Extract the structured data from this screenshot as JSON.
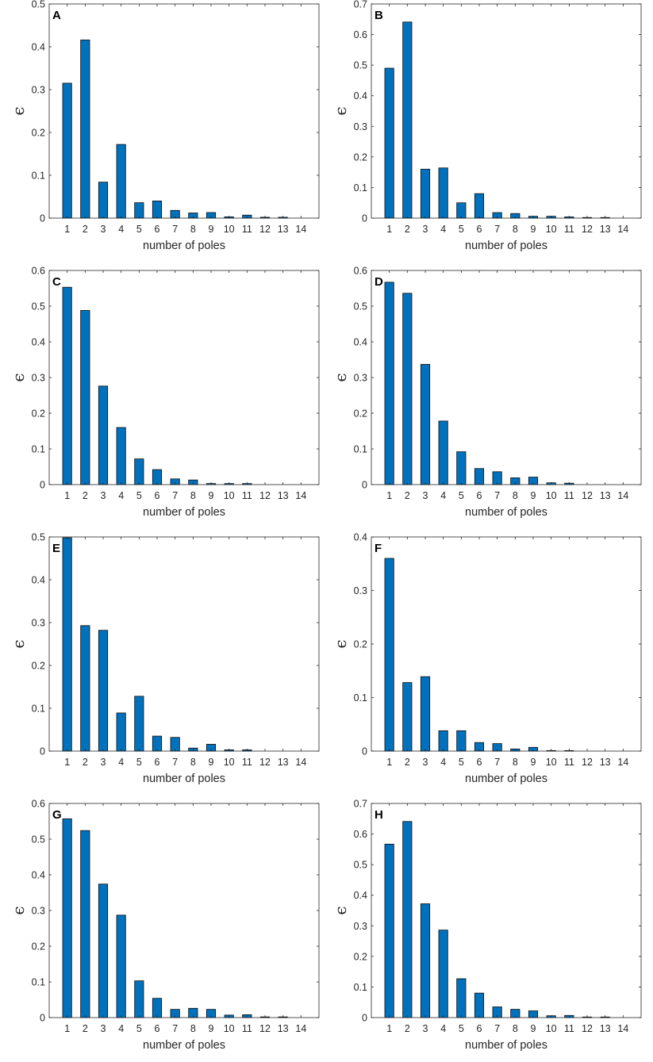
{
  "colors": {
    "bar": "#0072BD",
    "bar_edge": "#0d0d0d",
    "axis": "#262626"
  },
  "chart_data": [
    {
      "type": "bar",
      "panel": "A",
      "title": "",
      "xlabel": "number of poles",
      "ylabel": "ϵ",
      "categories": [
        "1",
        "2",
        "3",
        "4",
        "5",
        "6",
        "7",
        "8",
        "9",
        "10",
        "11",
        "12",
        "13",
        "14"
      ],
      "values": [
        0.315,
        0.416,
        0.084,
        0.172,
        0.036,
        0.04,
        0.018,
        0.012,
        0.013,
        0.003,
        0.007,
        0.002,
        0.002,
        0.0
      ],
      "ylim": [
        0,
        0.5
      ],
      "yticks": [
        0,
        0.1,
        0.2,
        0.3,
        0.4,
        0.5
      ],
      "yticklabels": [
        "0",
        "0.1",
        "0.2",
        "0.3",
        "0.4",
        "0.5"
      ]
    },
    {
      "type": "bar",
      "panel": "B",
      "title": "",
      "xlabel": "number of poles",
      "ylabel": "ϵ",
      "categories": [
        "1",
        "2",
        "3",
        "4",
        "5",
        "6",
        "7",
        "8",
        "9",
        "10",
        "11",
        "12",
        "13",
        "14"
      ],
      "values": [
        0.49,
        0.641,
        0.16,
        0.164,
        0.05,
        0.08,
        0.018,
        0.015,
        0.006,
        0.006,
        0.004,
        0.002,
        0.002,
        0.0
      ],
      "ylim": [
        0,
        0.7
      ],
      "yticks": [
        0,
        0.1,
        0.2,
        0.3,
        0.4,
        0.5,
        0.6,
        0.7
      ],
      "yticklabels": [
        "0",
        "0.1",
        "0.2",
        "0.3",
        "0.4",
        "0.5",
        "0.6",
        "0.7"
      ]
    },
    {
      "type": "bar",
      "panel": "C",
      "title": "",
      "xlabel": "number of poles",
      "ylabel": "ϵ",
      "categories": [
        "1",
        "2",
        "3",
        "4",
        "5",
        "6",
        "7",
        "8",
        "9",
        "10",
        "11",
        "12",
        "13",
        "14"
      ],
      "values": [
        0.553,
        0.488,
        0.276,
        0.16,
        0.072,
        0.042,
        0.016,
        0.013,
        0.003,
        0.003,
        0.003,
        0.0,
        0.0,
        0.0
      ],
      "ylim": [
        0,
        0.6
      ],
      "yticks": [
        0,
        0.1,
        0.2,
        0.3,
        0.4,
        0.5,
        0.6
      ],
      "yticklabels": [
        "0",
        "0.1",
        "0.2",
        "0.3",
        "0.4",
        "0.5",
        "0.6"
      ]
    },
    {
      "type": "bar",
      "panel": "D",
      "title": "",
      "xlabel": "number of poles",
      "ylabel": "ϵ",
      "categories": [
        "1",
        "2",
        "3",
        "4",
        "5",
        "6",
        "7",
        "8",
        "9",
        "10",
        "11",
        "12",
        "13",
        "14"
      ],
      "values": [
        0.567,
        0.536,
        0.337,
        0.178,
        0.092,
        0.045,
        0.036,
        0.019,
        0.021,
        0.005,
        0.004,
        0.0,
        0.0,
        0.0
      ],
      "ylim": [
        0,
        0.6
      ],
      "yticks": [
        0,
        0.1,
        0.2,
        0.3,
        0.4,
        0.5,
        0.6
      ],
      "yticklabels": [
        "0",
        "0.1",
        "0.2",
        "0.3",
        "0.4",
        "0.5",
        "0.6"
      ]
    },
    {
      "type": "bar",
      "panel": "E",
      "title": "",
      "xlabel": "number of poles",
      "ylabel": "ϵ",
      "categories": [
        "1",
        "2",
        "3",
        "4",
        "5",
        "6",
        "7",
        "8",
        "9",
        "10",
        "11",
        "12",
        "13",
        "14"
      ],
      "values": [
        0.498,
        0.293,
        0.282,
        0.089,
        0.128,
        0.035,
        0.032,
        0.007,
        0.016,
        0.003,
        0.003,
        0.0,
        0.0,
        0.0
      ],
      "ylim": [
        0,
        0.5
      ],
      "yticks": [
        0,
        0.1,
        0.2,
        0.3,
        0.4,
        0.5
      ],
      "yticklabels": [
        "0",
        "0.1",
        "0.2",
        "0.3",
        "0.4",
        "0.5"
      ]
    },
    {
      "type": "bar",
      "panel": "F",
      "title": "",
      "xlabel": "number of poles",
      "ylabel": "ϵ",
      "categories": [
        "1",
        "2",
        "3",
        "4",
        "5",
        "6",
        "7",
        "8",
        "9",
        "10",
        "11",
        "12",
        "13",
        "14"
      ],
      "values": [
        0.36,
        0.128,
        0.139,
        0.038,
        0.038,
        0.016,
        0.014,
        0.004,
        0.007,
        0.001,
        0.001,
        0.0,
        0.0,
        0.0
      ],
      "ylim": [
        0,
        0.4
      ],
      "yticks": [
        0,
        0.1,
        0.2,
        0.3,
        0.4
      ],
      "yticklabels": [
        "0",
        "0.1",
        "0.2",
        "0.3",
        "0.4"
      ]
    },
    {
      "type": "bar",
      "panel": "G",
      "title": "",
      "xlabel": "number of poles",
      "ylabel": "ϵ",
      "categories": [
        "1",
        "2",
        "3",
        "4",
        "5",
        "6",
        "7",
        "8",
        "9",
        "10",
        "11",
        "12",
        "13",
        "14"
      ],
      "values": [
        0.557,
        0.524,
        0.374,
        0.287,
        0.103,
        0.054,
        0.023,
        0.026,
        0.023,
        0.007,
        0.008,
        0.002,
        0.002,
        0.0
      ],
      "ylim": [
        0,
        0.6
      ],
      "yticks": [
        0,
        0.1,
        0.2,
        0.3,
        0.4,
        0.5,
        0.6
      ],
      "yticklabels": [
        "0",
        "0.1",
        "0.2",
        "0.3",
        "0.4",
        "0.5",
        "0.6"
      ]
    },
    {
      "type": "bar",
      "panel": "H",
      "title": "",
      "xlabel": "number of poles",
      "ylabel": "ϵ",
      "categories": [
        "1",
        "2",
        "3",
        "4",
        "5",
        "6",
        "7",
        "8",
        "9",
        "10",
        "11",
        "12",
        "13",
        "14"
      ],
      "values": [
        0.567,
        0.641,
        0.372,
        0.286,
        0.127,
        0.08,
        0.035,
        0.027,
        0.022,
        0.006,
        0.007,
        0.002,
        0.002,
        0.0
      ],
      "ylim": [
        0,
        0.7
      ],
      "yticks": [
        0,
        0.1,
        0.2,
        0.3,
        0.4,
        0.5,
        0.6,
        0.7
      ],
      "yticklabels": [
        "0",
        "0.1",
        "0.2",
        "0.3",
        "0.4",
        "0.5",
        "0.6",
        "0.7"
      ]
    }
  ]
}
